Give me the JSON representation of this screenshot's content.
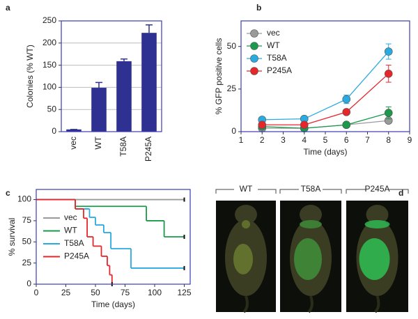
{
  "panel_labels": [
    "a",
    "b",
    "c",
    "d"
  ],
  "chart_data": [
    {
      "type": "bar",
      "ylabel": "Colonies (% WT)",
      "categories": [
        "vec",
        "WT",
        "T58A",
        "P245A"
      ],
      "values": [
        5,
        99,
        159,
        223
      ],
      "errors": [
        0,
        12,
        5,
        18
      ],
      "color": "#2e3192",
      "ylim": [
        0,
        250
      ],
      "yticks": [
        0,
        50,
        100,
        150,
        200,
        250
      ],
      "grid": true
    },
    {
      "type": "line",
      "ylabel": "% GFP positive cells",
      "xlabel": "Time (days)",
      "x": [
        2,
        4,
        6,
        8
      ],
      "series": [
        {
          "name": "vec",
          "color": "#9a9a9a",
          "values": [
            2,
            2,
            4,
            6.5
          ],
          "errors": [
            0.5,
            0.5,
            1,
            1.5
          ]
        },
        {
          "name": "WT",
          "color": "#1a9a4a",
          "values": [
            3,
            2,
            4,
            11
          ],
          "errors": [
            1,
            0.5,
            1.5,
            3.5
          ]
        },
        {
          "name": "T58A",
          "color": "#29aae1",
          "values": [
            7,
            7.5,
            19,
            47
          ],
          "errors": [
            1,
            1,
            2.5,
            4.5
          ]
        },
        {
          "name": "P245A",
          "color": "#e5262b",
          "values": [
            4,
            4,
            11.5,
            34
          ],
          "errors": [
            1,
            1,
            1,
            5
          ]
        }
      ],
      "xlim": [
        1,
        9
      ],
      "xticks": [
        1,
        2,
        3,
        4,
        5,
        6,
        7,
        8,
        9
      ],
      "ylim": [
        0,
        65
      ],
      "yticks": [
        0,
        25,
        50
      ],
      "legend": "upper left"
    },
    {
      "type": "step",
      "ylabel": "% survival",
      "xlabel": "Time (days)",
      "series": [
        {
          "name": "vec",
          "color": "#9a9a9a",
          "x": [
            0,
            125
          ],
          "values": [
            100,
            100
          ]
        },
        {
          "name": "WT",
          "color": "#1a9a4a",
          "x": [
            0,
            33,
            93,
            108,
            125
          ],
          "values": [
            100,
            92,
            75,
            56,
            56
          ]
        },
        {
          "name": "T58A",
          "color": "#29aae1",
          "x": [
            0,
            33,
            45,
            50,
            57,
            63,
            80,
            125
          ],
          "values": [
            100,
            89,
            79,
            70,
            61,
            42,
            19,
            19
          ]
        },
        {
          "name": "P245A",
          "color": "#e5262b",
          "x": [
            0,
            33,
            40,
            43,
            48,
            55,
            60,
            62,
            64
          ],
          "values": [
            100,
            89,
            78,
            56,
            45,
            33,
            22,
            11,
            0
          ]
        }
      ],
      "xlim": [
        0,
        130
      ],
      "xticks": [
        0,
        25,
        50,
        75,
        100,
        125
      ],
      "ylim": [
        0,
        112
      ],
      "yticks": [
        0,
        25,
        50,
        75,
        100
      ],
      "legend": "lower left"
    }
  ],
  "image_panel": {
    "labels": [
      "WT",
      "T58A",
      "P245A"
    ]
  }
}
